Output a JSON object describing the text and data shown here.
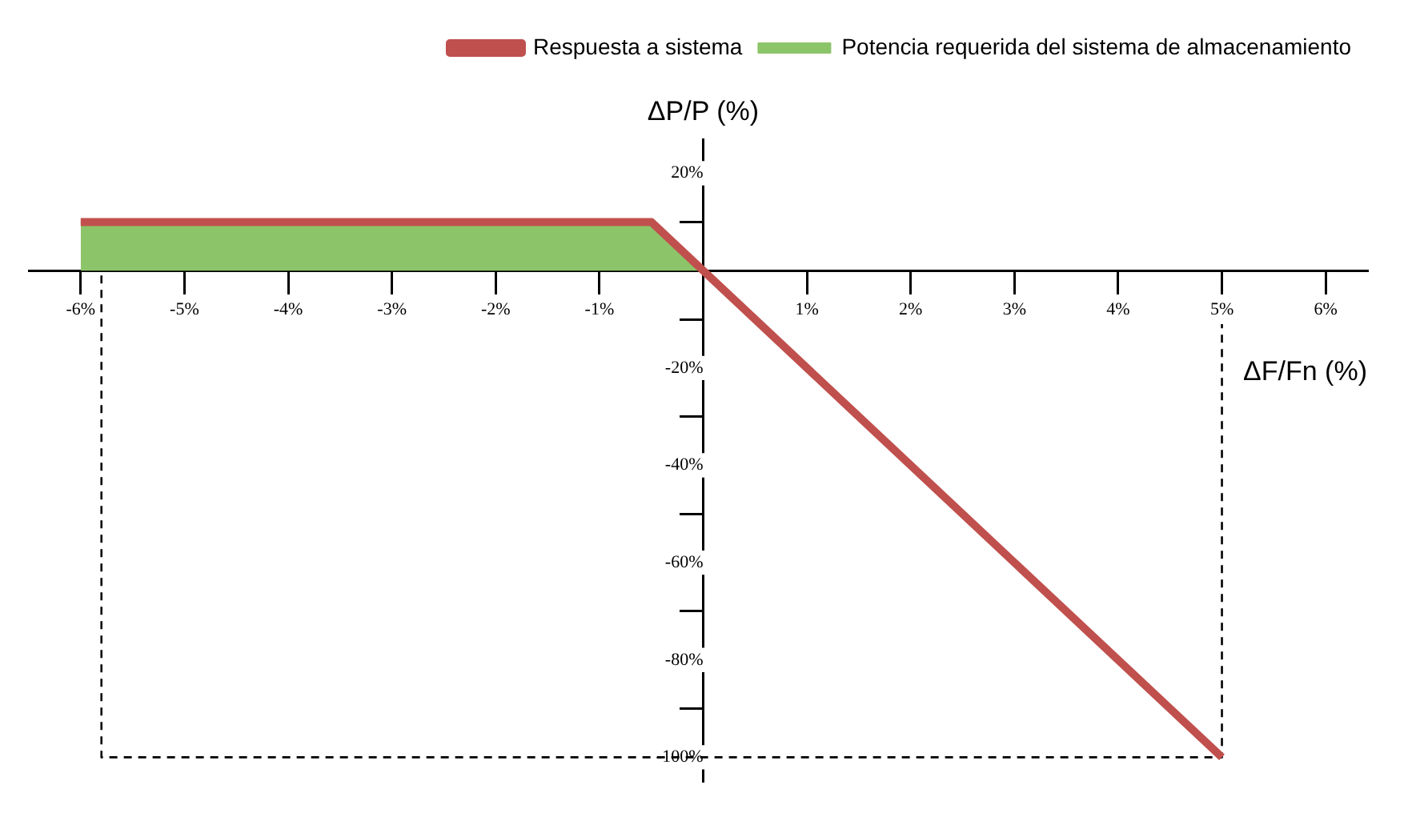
{
  "chart_data": {
    "type": "line",
    "xlabel": "ΔF/Fn (%)",
    "ylabel": "ΔP/P (%)",
    "legend": "top right",
    "grid": false,
    "marker": "none",
    "xlim": [
      -6.5,
      6.4
    ],
    "ylim": [
      -105,
      27
    ],
    "xticks": [
      {
        "value": -6,
        "label": "-6%"
      },
      {
        "value": -5,
        "label": "-5%"
      },
      {
        "value": -4,
        "label": "-4%"
      },
      {
        "value": -3,
        "label": "-3%"
      },
      {
        "value": -2,
        "label": "-2%"
      },
      {
        "value": -1,
        "label": "-1%"
      },
      {
        "value": 1,
        "label": "1%"
      },
      {
        "value": 2,
        "label": "2%"
      },
      {
        "value": 3,
        "label": "3%"
      },
      {
        "value": 4,
        "label": "4%"
      },
      {
        "value": 5,
        "label": "5%"
      },
      {
        "value": 6,
        "label": "6%"
      }
    ],
    "yticks": [
      {
        "value": 20,
        "label": "20%"
      },
      {
        "value": 10,
        "label": null
      },
      {
        "value": -10,
        "label": null
      },
      {
        "value": -20,
        "label": "-20%"
      },
      {
        "value": -30,
        "label": null
      },
      {
        "value": -40,
        "label": "-40%"
      },
      {
        "value": -50,
        "label": null
      },
      {
        "value": -60,
        "label": "-60%"
      },
      {
        "value": -70,
        "label": null
      },
      {
        "value": -80,
        "label": "-80%"
      },
      {
        "value": -90,
        "label": null
      },
      {
        "value": -100,
        "label": "-100%"
      }
    ],
    "series": [
      {
        "name": "Respuesta a sistema",
        "type": "line",
        "color": "#c0504d",
        "x": [
          -6,
          -0.5,
          5
        ],
        "values": [
          10,
          10,
          -100
        ]
      },
      {
        "name": "Potencia requerida del sistema de almacenamiento",
        "type": "area",
        "color": "#8cc46a",
        "x": [
          -6,
          -0.5,
          0
        ],
        "values": [
          10,
          10,
          0
        ]
      },
      {
        "type": "line",
        "color": "#000000",
        "line_style": "dashed",
        "x": [
          -5.8,
          -5.8,
          5,
          5
        ],
        "values": [
          -1,
          -100,
          -100,
          -11
        ]
      }
    ]
  }
}
